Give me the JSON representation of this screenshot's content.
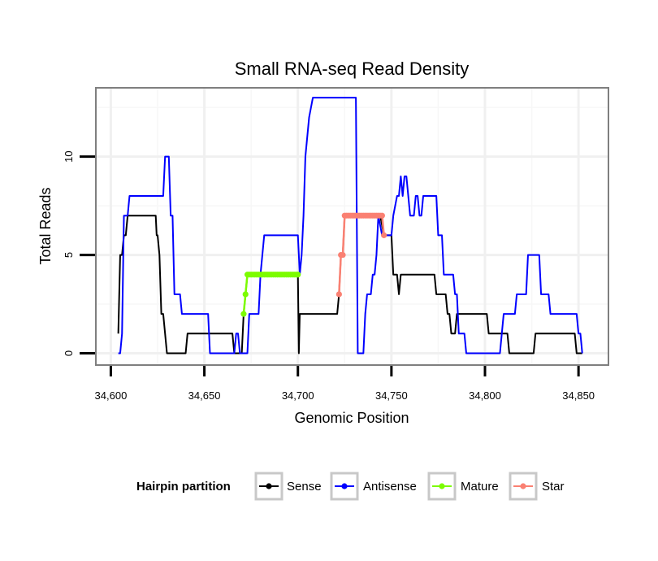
{
  "chart_data": {
    "type": "line",
    "title": "Small RNA-seq Read Density",
    "xlabel": "Genomic Position",
    "ylabel": "Total Reads",
    "xlim": [
      34592,
      34866
    ],
    "ylim": [
      -0.6,
      13.5
    ],
    "x_ticks": [
      34600,
      34650,
      34700,
      34750,
      34800,
      34850
    ],
    "x_tick_labels": [
      "34,600",
      "34,650",
      "34,700",
      "34,750",
      "34,800",
      "34,850"
    ],
    "y_ticks": [
      0,
      5,
      10
    ],
    "y_tick_labels": [
      "0",
      "5",
      "10"
    ],
    "legend": {
      "title": "Hairpin partition",
      "placement": "bottom",
      "entries": [
        "Sense",
        "Antisense",
        "Mature",
        "Star"
      ]
    },
    "series": [
      {
        "name": "Sense",
        "color": "#000000",
        "marker": "line",
        "points": [
          [
            34604,
            1
          ],
          [
            34605,
            5
          ],
          [
            34606,
            5
          ],
          [
            34607,
            6
          ],
          [
            34608,
            6
          ],
          [
            34609,
            7
          ],
          [
            34610,
            7
          ],
          [
            34624,
            7
          ],
          [
            34624.5,
            6
          ],
          [
            34625,
            6
          ],
          [
            34626,
            5
          ],
          [
            34627,
            2
          ],
          [
            34628,
            2
          ],
          [
            34629,
            1
          ],
          [
            34630,
            0
          ],
          [
            34640,
            0
          ],
          [
            34641,
            1
          ],
          [
            34665,
            1
          ],
          [
            34666,
            0
          ],
          [
            34670,
            0
          ],
          [
            34671,
            2
          ],
          [
            34672,
            3
          ],
          [
            34673,
            4
          ],
          [
            34700,
            4
          ],
          [
            34700.5,
            0
          ],
          [
            34701,
            2
          ],
          [
            34721,
            2
          ],
          [
            34722,
            3
          ],
          [
            34723,
            5
          ],
          [
            34724,
            5
          ],
          [
            34725,
            7
          ],
          [
            34744,
            7
          ],
          [
            34746,
            6
          ],
          [
            34750,
            6
          ],
          [
            34751,
            4
          ],
          [
            34752,
            4
          ],
          [
            34753,
            4
          ],
          [
            34754,
            3
          ],
          [
            34755,
            4
          ],
          [
            34773,
            4
          ],
          [
            34774,
            3
          ],
          [
            34779,
            3
          ],
          [
            34780,
            2
          ],
          [
            34781,
            2
          ],
          [
            34782,
            1
          ],
          [
            34784,
            1
          ],
          [
            34785,
            2
          ],
          [
            34801,
            2
          ],
          [
            34802,
            1
          ],
          [
            34812,
            1
          ],
          [
            34813,
            0
          ],
          [
            34826,
            0
          ],
          [
            34827,
            1
          ],
          [
            34848,
            1
          ],
          [
            34849,
            0
          ],
          [
            34852,
            0
          ]
        ]
      },
      {
        "name": "Antisense",
        "color": "#0000ff",
        "marker": "line",
        "points": [
          [
            34604,
            0
          ],
          [
            34605,
            0
          ],
          [
            34606,
            1
          ],
          [
            34607,
            7
          ],
          [
            34609,
            7
          ],
          [
            34610,
            8
          ],
          [
            34628,
            8
          ],
          [
            34629,
            10
          ],
          [
            34631,
            10
          ],
          [
            34632,
            7
          ],
          [
            34633,
            7
          ],
          [
            34634,
            3
          ],
          [
            34637,
            3
          ],
          [
            34638,
            2
          ],
          [
            34652,
            2
          ],
          [
            34653,
            0
          ],
          [
            34666,
            0
          ],
          [
            34667,
            1
          ],
          [
            34668,
            1
          ],
          [
            34669,
            0
          ],
          [
            34673,
            0
          ],
          [
            34674,
            2
          ],
          [
            34679,
            2
          ],
          [
            34680,
            4
          ],
          [
            34682,
            6
          ],
          [
            34700,
            6
          ],
          [
            34701,
            4
          ],
          [
            34702,
            5
          ],
          [
            34703,
            7
          ],
          [
            34704,
            10
          ],
          [
            34706,
            12
          ],
          [
            34708,
            13
          ],
          [
            34731,
            13
          ],
          [
            34732,
            0
          ],
          [
            34735,
            0
          ],
          [
            34736,
            2
          ],
          [
            34737,
            3
          ],
          [
            34739,
            3
          ],
          [
            34740,
            4
          ],
          [
            34741,
            4
          ],
          [
            34742,
            5
          ],
          [
            34743,
            7
          ],
          [
            34745,
            6
          ],
          [
            34750,
            6
          ],
          [
            34751,
            7
          ],
          [
            34753,
            8
          ],
          [
            34754,
            8
          ],
          [
            34755,
            9
          ],
          [
            34756,
            8
          ],
          [
            34757,
            9
          ],
          [
            34758,
            9
          ],
          [
            34760,
            7
          ],
          [
            34762,
            7
          ],
          [
            34763,
            8
          ],
          [
            34764,
            8
          ],
          [
            34765,
            7
          ],
          [
            34766,
            7
          ],
          [
            34767,
            8
          ],
          [
            34774,
            8
          ],
          [
            34775,
            6
          ],
          [
            34777,
            6
          ],
          [
            34778,
            4
          ],
          [
            34783,
            4
          ],
          [
            34784,
            3
          ],
          [
            34785,
            3
          ],
          [
            34786,
            1
          ],
          [
            34789,
            1
          ],
          [
            34790,
            0
          ],
          [
            34808,
            0
          ],
          [
            34809,
            1
          ],
          [
            34810,
            2
          ],
          [
            34816,
            2
          ],
          [
            34817,
            3
          ],
          [
            34822,
            3
          ],
          [
            34823,
            5
          ],
          [
            34829,
            5
          ],
          [
            34830,
            3
          ],
          [
            34834,
            3
          ],
          [
            34835,
            2
          ],
          [
            34849,
            2
          ],
          [
            34850,
            1
          ],
          [
            34851,
            1
          ],
          [
            34852,
            0
          ]
        ]
      },
      {
        "name": "Mature",
        "color": "#7cfc00",
        "marker": "point",
        "points": [
          [
            34671,
            2
          ],
          [
            34672,
            3
          ],
          [
            34673,
            4
          ],
          [
            34674,
            4
          ],
          [
            34675,
            4
          ],
          [
            34676,
            4
          ],
          [
            34677,
            4
          ],
          [
            34678,
            4
          ],
          [
            34679,
            4
          ],
          [
            34680,
            4
          ],
          [
            34681,
            4
          ],
          [
            34682,
            4
          ],
          [
            34683,
            4
          ],
          [
            34684,
            4
          ],
          [
            34685,
            4
          ],
          [
            34686,
            4
          ],
          [
            34687,
            4
          ],
          [
            34688,
            4
          ],
          [
            34689,
            4
          ],
          [
            34690,
            4
          ],
          [
            34691,
            4
          ],
          [
            34692,
            4
          ],
          [
            34693,
            4
          ],
          [
            34694,
            4
          ],
          [
            34695,
            4
          ],
          [
            34696,
            4
          ],
          [
            34697,
            4
          ],
          [
            34698,
            4
          ],
          [
            34699,
            4
          ],
          [
            34700,
            4
          ]
        ]
      },
      {
        "name": "Star",
        "color": "#fa8072",
        "marker": "point",
        "points": [
          [
            34722,
            3
          ],
          [
            34723,
            5
          ],
          [
            34724,
            5
          ],
          [
            34725,
            7
          ],
          [
            34726,
            7
          ],
          [
            34727,
            7
          ],
          [
            34728,
            7
          ],
          [
            34729,
            7
          ],
          [
            34730,
            7
          ],
          [
            34731,
            7
          ],
          [
            34732,
            7
          ],
          [
            34733,
            7
          ],
          [
            34734,
            7
          ],
          [
            34735,
            7
          ],
          [
            34736,
            7
          ],
          [
            34737,
            7
          ],
          [
            34738,
            7
          ],
          [
            34739,
            7
          ],
          [
            34740,
            7
          ],
          [
            34741,
            7
          ],
          [
            34742,
            7
          ],
          [
            34743,
            7
          ],
          [
            34744,
            7
          ],
          [
            34745,
            7
          ],
          [
            34746,
            6
          ]
        ]
      }
    ]
  }
}
